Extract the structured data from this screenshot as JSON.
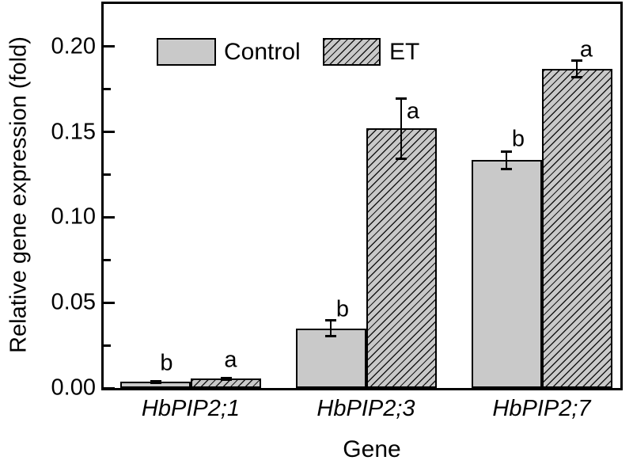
{
  "chart_data": {
    "type": "bar",
    "title": "",
    "xlabel": "Gene",
    "ylabel": "Relative gene expression (fold)",
    "categories": [
      "HbPIP2;1",
      "HbPIP2;3",
      "HbPIP2;7"
    ],
    "series": [
      {
        "name": "Control",
        "style": "solid",
        "values": [
          0.0035,
          0.035,
          0.1335
        ],
        "errors": [
          0.0005,
          0.0045,
          0.005
        ],
        "sig_letters": [
          "b",
          "b",
          "b"
        ]
      },
      {
        "name": "ET",
        "style": "hatched",
        "values": [
          0.0055,
          0.152,
          0.187
        ],
        "errors": [
          0.0005,
          0.0175,
          0.005
        ],
        "sig_letters": [
          "a",
          "a",
          "a"
        ]
      }
    ],
    "ylim": [
      0,
      0.225
    ],
    "yticks": [
      0.0,
      0.05,
      0.1,
      0.15,
      0.2
    ],
    "ytick_labels": [
      "0.00",
      "0.05",
      "0.10",
      "0.15",
      "0.20"
    ],
    "minor_yticks": [
      0.025,
      0.075,
      0.125,
      0.175
    ],
    "grid": false,
    "legend_position": "top-left-inside",
    "colors": {
      "bar_fill": "#c9c9c9",
      "hatch_line": "#000000",
      "axis": "#000000",
      "text": "#000000",
      "background": "#ffffff"
    }
  }
}
